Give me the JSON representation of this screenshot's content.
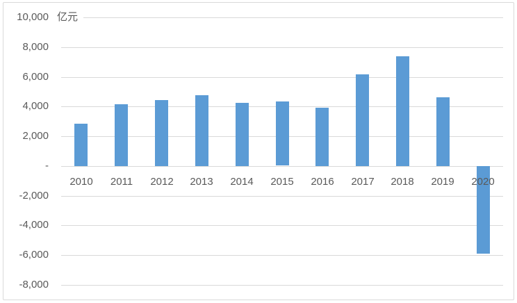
{
  "chart_data": {
    "type": "bar",
    "title": "",
    "unit_label": "亿元",
    "categories": [
      "2010",
      "2011",
      "2012",
      "2013",
      "2014",
      "2015",
      "2016",
      "2017",
      "2018",
      "2019",
      "2020"
    ],
    "values": [
      2850,
      4150,
      4450,
      4750,
      4250,
      4320,
      3920,
      6150,
      7390,
      4620,
      -5870
    ],
    "ylim": [
      -8000,
      10000
    ],
    "ytick_step": 2000,
    "yticks": [
      {
        "value": 10000,
        "label": "10,000"
      },
      {
        "value": 8000,
        "label": "8,000"
      },
      {
        "value": 6000,
        "label": "6,000"
      },
      {
        "value": 4000,
        "label": "4,000"
      },
      {
        "value": 2000,
        "label": "2,000"
      },
      {
        "value": 0,
        "label": "-"
      },
      {
        "value": -2000,
        "label": "-2,000"
      },
      {
        "value": -4000,
        "label": "-4,000"
      },
      {
        "value": -6000,
        "label": "-6,000"
      },
      {
        "value": -8000,
        "label": "-8,000"
      }
    ],
    "grid": true,
    "legend_position": "none",
    "colors": {
      "bar": "#5B9BD5",
      "gridline": "#D9D9D9",
      "text": "#595959",
      "border": "#D9D9D9",
      "background": "#FFFFFF"
    }
  }
}
